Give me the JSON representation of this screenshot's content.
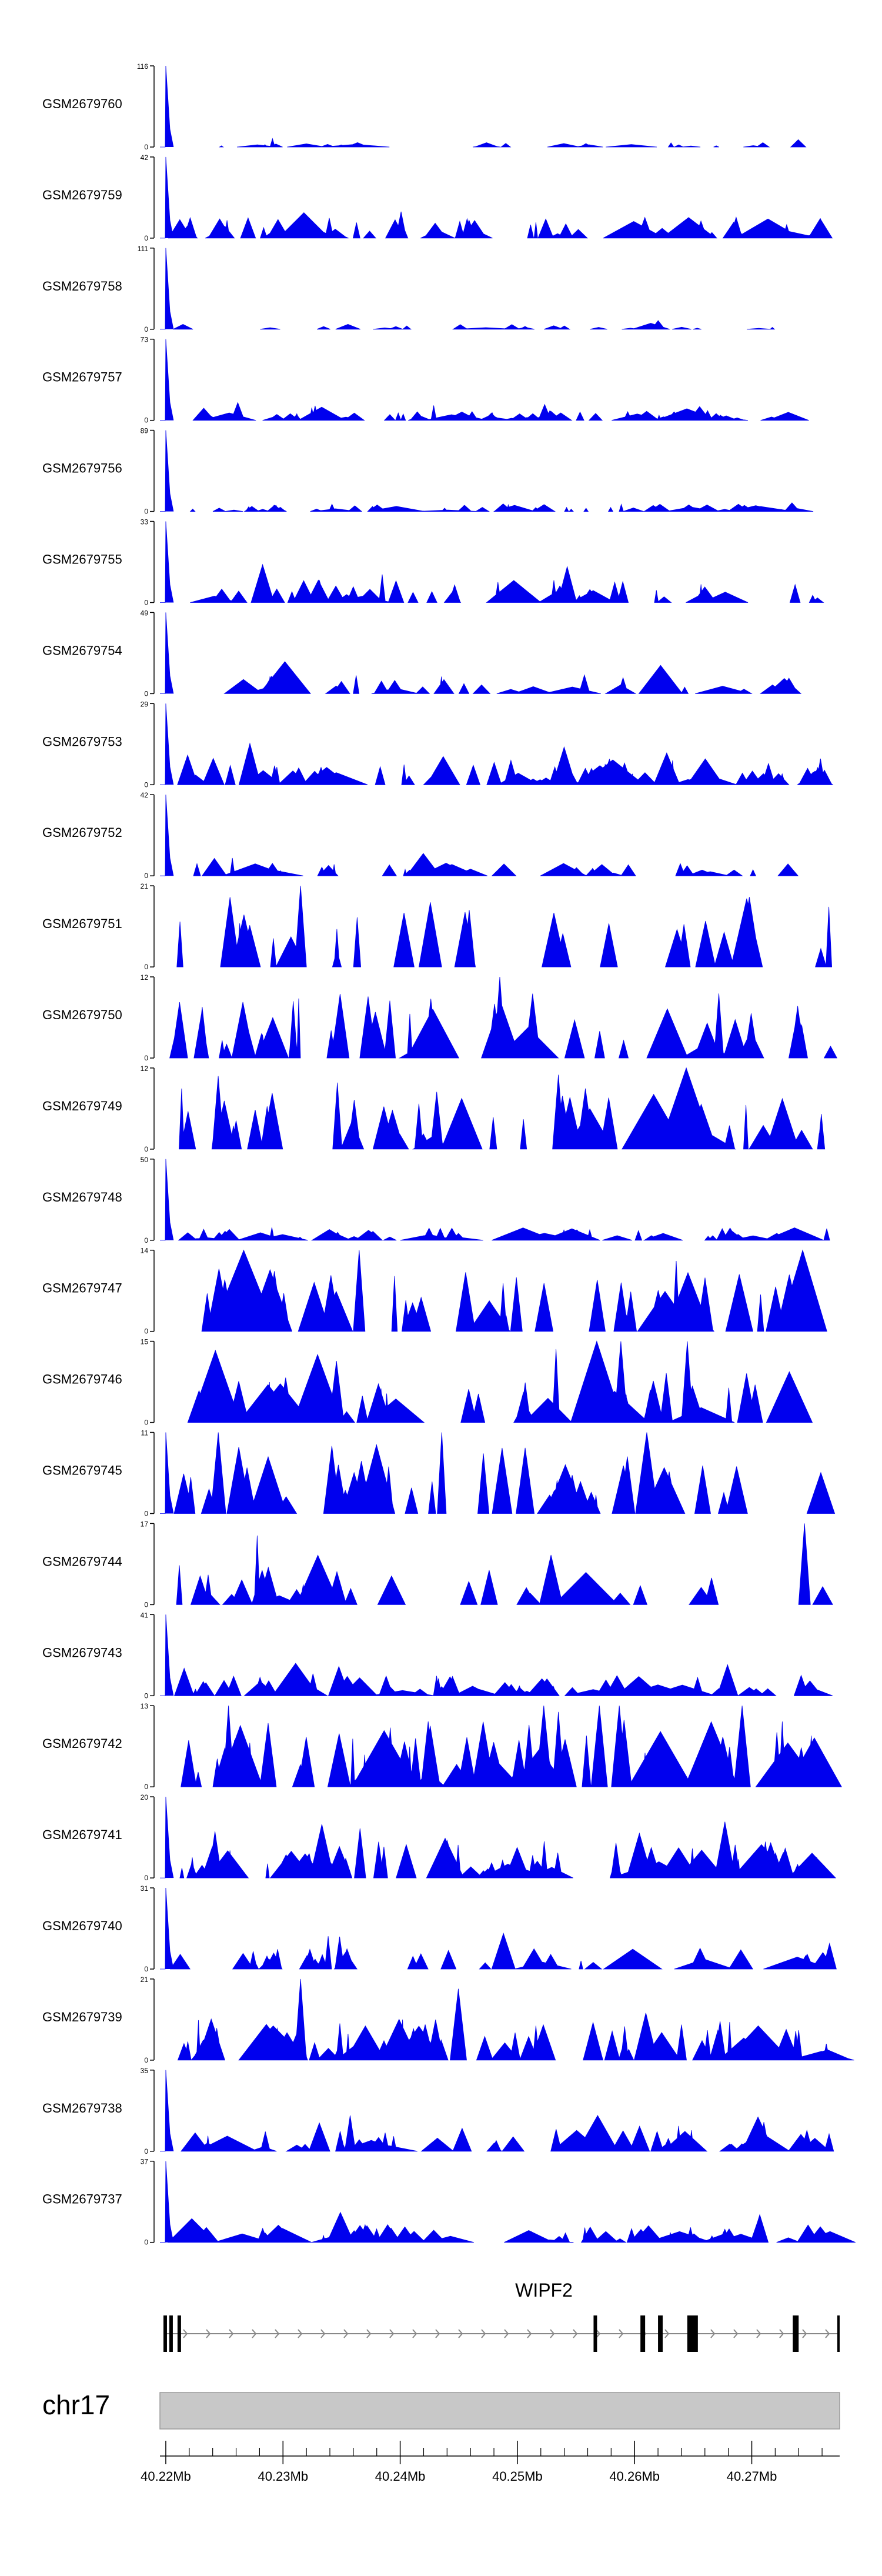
{
  "figure": {
    "chromosome": "chr17",
    "gene": "WIPF2",
    "colors": {
      "signal": "#0000ee",
      "axis": "#000000",
      "ideogram": "#c8c8c8"
    }
  },
  "chart_data": {
    "type": "area",
    "x_range_mb": [
      40.2195,
      40.2775
    ],
    "genome_axis": {
      "ticks_mb": [
        40.22,
        40.23,
        40.24,
        40.25,
        40.26,
        40.27
      ],
      "tick_labels": [
        "40.22Mb",
        "40.23Mb",
        "40.24Mb",
        "40.25Mb",
        "40.26Mb",
        "40.27Mb"
      ]
    },
    "tracks": [
      {
        "name": "GSM2679760",
        "ymax_label": "116",
        "ymin_label": "0",
        "ymax": 116,
        "peak": [
          40.22,
          116
        ],
        "typ": 5,
        "n": 28,
        "seed": 11,
        "end": 0.975
      },
      {
        "name": "GSM2679759",
        "ymax_label": "42",
        "ymin_label": "0",
        "ymax": 42,
        "peak": [
          40.22,
          42
        ],
        "typ": 8,
        "n": 60,
        "seed": 12,
        "end": 1.0
      },
      {
        "name": "GSM2679758",
        "ymax_label": "111",
        "ymin_label": "0",
        "ymax": 111,
        "peak": [
          40.22,
          111
        ],
        "typ": 5,
        "n": 22,
        "seed": 13,
        "end": 0.93
      },
      {
        "name": "GSM2679757",
        "ymax_label": "73",
        "ymin_label": "0",
        "ymax": 73,
        "peak": [
          40.22,
          73
        ],
        "typ": 7,
        "n": 75,
        "seed": 14,
        "end": 1.0
      },
      {
        "name": "GSM2679756",
        "ymax_label": "89",
        "ymin_label": "0",
        "ymax": 89,
        "peak": [
          40.22,
          89
        ],
        "typ": 6,
        "n": 55,
        "seed": 15,
        "end": 1.0
      },
      {
        "name": "GSM2679755",
        "ymax_label": "33",
        "ymin_label": "0",
        "ymax": 33,
        "peak": [
          40.22,
          33
        ],
        "typ": 7,
        "n": 45,
        "seed": 16,
        "end": 1.0
      },
      {
        "name": "GSM2679754",
        "ymax_label": "49",
        "ymin_label": "0",
        "ymax": 49,
        "peak": [
          40.22,
          49
        ],
        "typ": 8,
        "n": 40,
        "seed": 17,
        "end": 1.0
      },
      {
        "name": "GSM2679753",
        "ymax_label": "29",
        "ymin_label": "0",
        "ymax": 29,
        "peak": [
          40.22,
          29
        ],
        "typ": 7,
        "n": 70,
        "seed": 18,
        "end": 1.0
      },
      {
        "name": "GSM2679752",
        "ymax_label": "42",
        "ymin_label": "0",
        "ymax": 42,
        "peak": [
          40.22,
          42
        ],
        "typ": 5,
        "n": 40,
        "seed": 19,
        "end": 0.985
      },
      {
        "name": "GSM2679751",
        "ymax_label": "21",
        "ymin_label": "0",
        "ymax": 21,
        "peak": [
          40.2315,
          21
        ],
        "typ": 14,
        "n": 28,
        "seed": 20,
        "end": 1.0
      },
      {
        "name": "GSM2679750",
        "ymax_label": "12",
        "ymin_label": "0",
        "ymax": 12,
        "peak": [
          40.2485,
          12
        ],
        "typ": 7,
        "n": 48,
        "seed": 21,
        "end": 1.0
      },
      {
        "name": "GSM2679749",
        "ymax_label": "12",
        "ymin_label": "0",
        "ymax": 12,
        "peak": [
          40.2535,
          11
        ],
        "typ": 7,
        "n": 45,
        "seed": 22,
        "end": 1.0
      },
      {
        "name": "GSM2679748",
        "ymax_label": "50",
        "ymin_label": "0",
        "ymax": 50,
        "peak": [
          40.22,
          50
        ],
        "typ": 6,
        "n": 55,
        "seed": 23,
        "end": 1.0
      },
      {
        "name": "GSM2679747",
        "ymax_label": "14",
        "ymin_label": "0",
        "ymax": 14,
        "peak": [
          40.2365,
          14
        ],
        "typ": 8,
        "n": 45,
        "seed": 24,
        "end": 0.99
      },
      {
        "name": "GSM2679746",
        "ymax_label": "15",
        "ymin_label": "0",
        "ymax": 15,
        "peak": [
          40.2645,
          15
        ],
        "typ": 7,
        "n": 45,
        "seed": 25,
        "end": 0.99
      },
      {
        "name": "GSM2679745",
        "ymax_label": "11",
        "ymin_label": "0",
        "ymax": 11,
        "peak": [
          40.22,
          11
        ],
        "typ": 7,
        "n": 50,
        "seed": 26,
        "end": 1.0
      },
      {
        "name": "GSM2679744",
        "ymax_label": "17",
        "ymin_label": "0",
        "ymax": 17,
        "peak": [
          40.2745,
          17
        ],
        "typ": 7,
        "n": 32,
        "seed": 27,
        "end": 0.99
      },
      {
        "name": "GSM2679743",
        "ymax_label": "41",
        "ymin_label": "0",
        "ymax": 41,
        "peak": [
          40.22,
          41
        ],
        "typ": 8,
        "n": 60,
        "seed": 28,
        "end": 1.0
      },
      {
        "name": "GSM2679742",
        "ymax_label": "13",
        "ymin_label": "0",
        "ymax": 13,
        "peak": [
          40.2535,
          12
        ],
        "typ": 8,
        "n": 60,
        "seed": 29,
        "end": 1.0
      },
      {
        "name": "GSM2679741",
        "ymax_label": "20",
        "ymin_label": "0",
        "ymax": 20,
        "peak": [
          40.22,
          20
        ],
        "typ": 7,
        "n": 70,
        "seed": 30,
        "end": 1.0
      },
      {
        "name": "GSM2679740",
        "ymax_label": "31",
        "ymin_label": "0",
        "ymax": 31,
        "peak": [
          40.22,
          31
        ],
        "typ": 6,
        "n": 45,
        "seed": 31,
        "end": 1.0
      },
      {
        "name": "GSM2679739",
        "ymax_label": "21",
        "ymin_label": "0",
        "ymax": 21,
        "peak": [
          40.2315,
          21
        ],
        "typ": 8,
        "n": 70,
        "seed": 32,
        "end": 1.0
      },
      {
        "name": "GSM2679738",
        "ymax_label": "35",
        "ymin_label": "0",
        "ymax": 35,
        "peak": [
          40.22,
          35
        ],
        "typ": 7,
        "n": 55,
        "seed": 33,
        "end": 1.0
      },
      {
        "name": "GSM2679737",
        "ymax_label": "37",
        "ymin_label": "0",
        "ymax": 37,
        "peak": [
          40.22,
          37
        ],
        "typ": 6,
        "n": 60,
        "seed": 34,
        "end": 1.0
      }
    ],
    "gene_model": {
      "name": "WIPF2",
      "strand": "+",
      "span_mb": [
        40.2198,
        40.2775
      ],
      "exons_mb": [
        [
          40.2198,
          40.2201
        ],
        [
          40.2203,
          40.2206
        ],
        [
          40.221,
          40.2213
        ],
        [
          40.2565,
          40.2568
        ],
        [
          40.2605,
          40.2609
        ],
        [
          40.262,
          40.2624
        ],
        [
          40.2645,
          40.2654
        ],
        [
          40.2735,
          40.274
        ],
        [
          40.2773,
          40.2775
        ]
      ]
    }
  }
}
